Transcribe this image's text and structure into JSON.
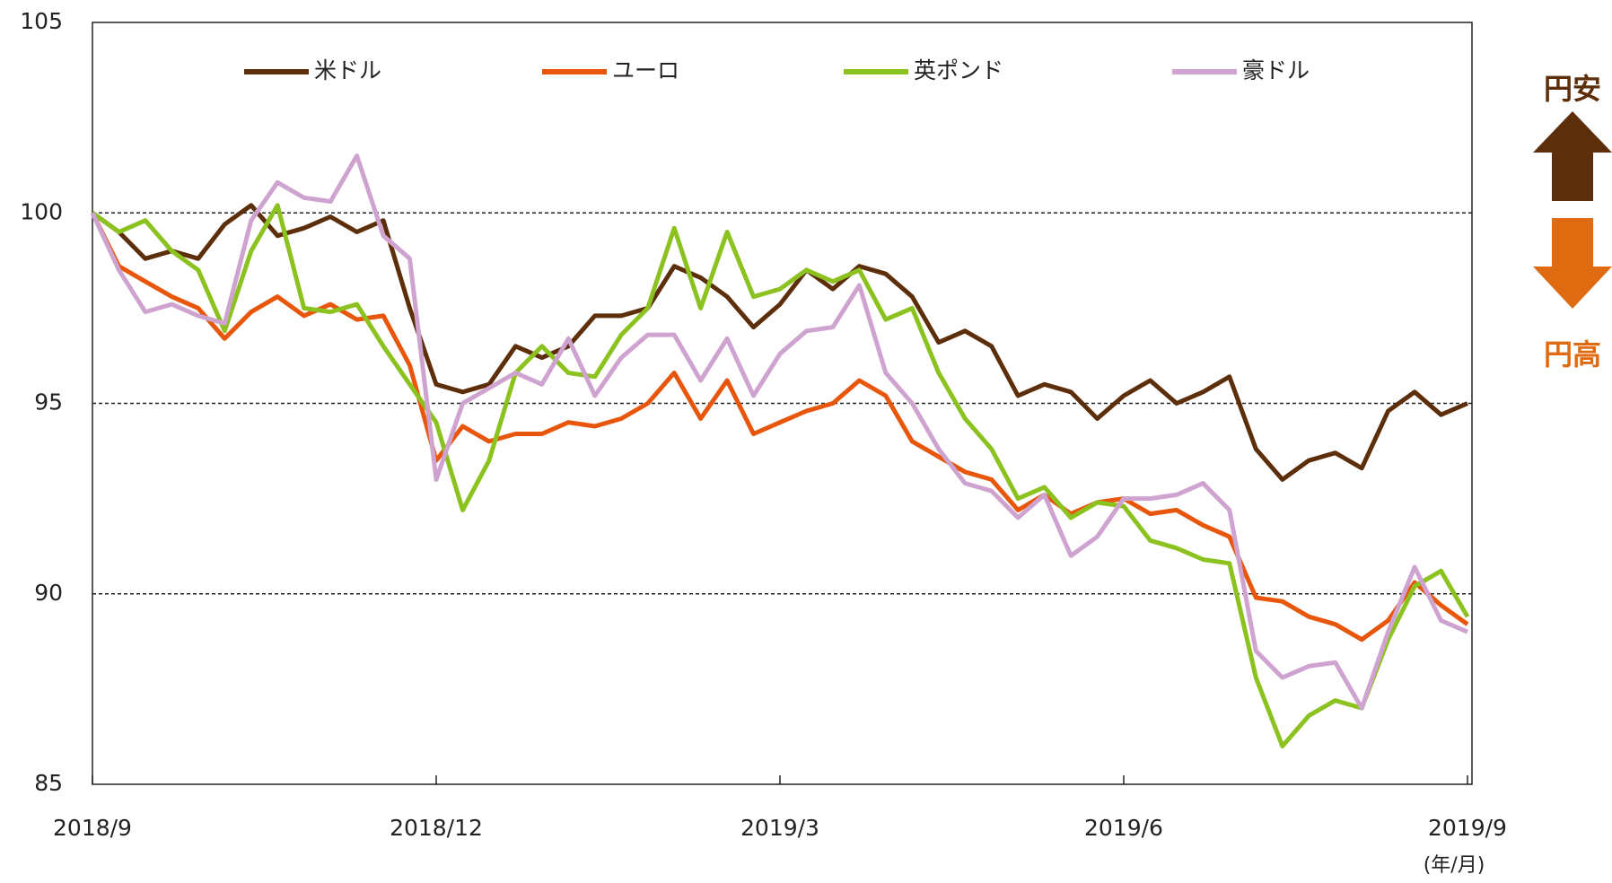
{
  "chart_data": {
    "type": "line",
    "categories": [
      "2018/9",
      null,
      null,
      null,
      null,
      null,
      null,
      null,
      null,
      null,
      null,
      null,
      null,
      "2018/12",
      null,
      null,
      null,
      null,
      null,
      null,
      null,
      null,
      null,
      null,
      null,
      null,
      "2019/3",
      null,
      null,
      null,
      null,
      null,
      null,
      null,
      null,
      null,
      null,
      null,
      null,
      "2019/6",
      null,
      null,
      null,
      null,
      null,
      null,
      null,
      null,
      null,
      null,
      null,
      null,
      "2019/9"
    ],
    "x_unit": "(年/月)",
    "ylim": [
      85,
      105
    ],
    "yticks": [
      85,
      90,
      95,
      100,
      105
    ],
    "grid": true,
    "legend": "top",
    "annotations": {
      "up": "円安",
      "up_color": "#5c2e0a",
      "down": "円高",
      "down_color": "#e06a10"
    },
    "series": [
      {
        "name": "米ドル",
        "color": "#5c2e0a",
        "values": [
          100,
          99.5,
          98.8,
          99.0,
          98.8,
          99.7,
          100.2,
          99.4,
          99.6,
          99.9,
          99.5,
          99.8,
          97.5,
          95.5,
          95.3,
          95.5,
          96.5,
          96.2,
          96.5,
          97.3,
          97.3,
          97.5,
          98.6,
          98.3,
          97.8,
          97.0,
          97.6,
          98.5,
          98.0,
          98.6,
          98.4,
          97.8,
          96.6,
          96.9,
          96.5,
          95.2,
          95.5,
          95.3,
          94.6,
          95.2,
          95.6,
          95.0,
          95.3,
          95.7,
          93.8,
          93.0,
          93.5,
          93.7,
          93.3,
          94.8,
          95.3,
          94.7,
          95.0
        ]
      },
      {
        "name": "ユーロ",
        "color": "#e8560c",
        "values": [
          100,
          98.6,
          98.2,
          97.8,
          97.5,
          96.7,
          97.4,
          97.8,
          97.3,
          97.6,
          97.2,
          97.3,
          96.0,
          93.5,
          94.4,
          94.0,
          94.2,
          94.2,
          94.5,
          94.4,
          94.6,
          95.0,
          95.8,
          94.6,
          95.6,
          94.2,
          94.5,
          94.8,
          95.0,
          95.6,
          95.2,
          94.0,
          93.6,
          93.2,
          93.0,
          92.2,
          92.6,
          92.1,
          92.4,
          92.5,
          92.1,
          92.2,
          91.8,
          91.5,
          89.9,
          89.8,
          89.4,
          89.2,
          88.8,
          89.3,
          90.3,
          89.7,
          89.2
        ]
      },
      {
        "name": "英ポンド",
        "color": "#8cc21f",
        "values": [
          100,
          99.5,
          99.8,
          99.0,
          98.5,
          96.9,
          99.0,
          100.2,
          97.5,
          97.4,
          97.6,
          96.5,
          95.5,
          94.5,
          92.2,
          93.5,
          95.8,
          96.5,
          95.8,
          95.7,
          96.8,
          97.5,
          99.6,
          97.5,
          99.5,
          97.8,
          98.0,
          98.5,
          98.2,
          98.5,
          97.2,
          97.5,
          95.8,
          94.6,
          93.8,
          92.5,
          92.8,
          92.0,
          92.4,
          92.3,
          91.4,
          91.2,
          90.9,
          90.8,
          87.8,
          86.0,
          86.8,
          87.2,
          87.0,
          88.8,
          90.2,
          90.6,
          89.4
        ]
      },
      {
        "name": "豪ドル",
        "color": "#cfa3cf",
        "values": [
          100,
          98.5,
          97.4,
          97.6,
          97.3,
          97.1,
          99.8,
          100.8,
          100.4,
          100.3,
          101.5,
          99.4,
          98.8,
          93.0,
          95.0,
          95.4,
          95.8,
          95.5,
          96.7,
          95.2,
          96.2,
          96.8,
          96.8,
          95.6,
          96.7,
          95.2,
          96.3,
          96.9,
          97.0,
          98.1,
          95.8,
          95.0,
          93.8,
          92.9,
          92.7,
          92.0,
          92.6,
          91.0,
          91.5,
          92.5,
          92.5,
          92.6,
          92.9,
          92.2,
          88.5,
          87.8,
          88.1,
          88.2,
          87.0,
          89.0,
          90.7,
          89.3,
          89.0
        ]
      }
    ]
  }
}
